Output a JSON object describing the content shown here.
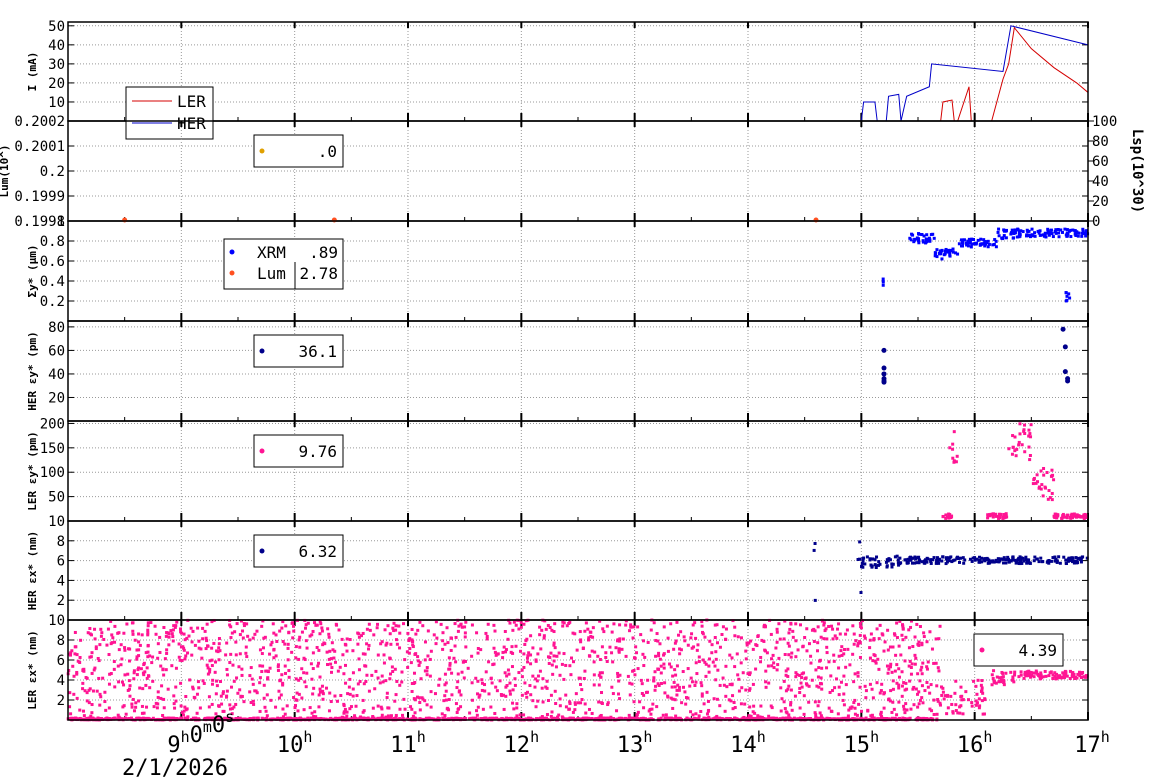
{
  "chart_data": [
    {
      "panel": "I",
      "type": "line",
      "ylabel": "I (mA)",
      "ylim": [
        0,
        52
      ],
      "yticks": [
        10,
        20,
        30,
        40,
        50
      ],
      "legend": {
        "placement": "left",
        "entries": [
          "LER",
          "HER"
        ]
      },
      "series": [
        {
          "name": "LER",
          "color": "#d40000",
          "x": [
            8.0,
            15.5,
            15.7,
            15.72,
            15.8,
            15.82,
            15.85,
            15.95,
            15.97,
            16.0,
            16.15,
            16.25,
            16.3,
            16.35,
            16.5,
            16.7,
            16.9,
            17.0
          ],
          "y": [
            0,
            0,
            0,
            10,
            11,
            0,
            0,
            18,
            0,
            0,
            0,
            22,
            30,
            49,
            38,
            28,
            20,
            15
          ]
        },
        {
          "name": "HER",
          "color": "#0000c8",
          "x": [
            8.0,
            15.0,
            15.02,
            15.12,
            15.14,
            15.22,
            15.24,
            15.33,
            15.35,
            15.4,
            15.6,
            15.62,
            16.25,
            16.32,
            17.0
          ],
          "y": [
            0,
            0,
            10,
            10,
            0,
            0,
            13,
            14,
            0,
            13,
            18,
            30,
            26,
            50,
            40
          ]
        }
      ]
    },
    {
      "panel": "Lum",
      "type": "scatter",
      "ylabel": "Lum(10^)",
      "ylim": [
        0.1998,
        0.2002
      ],
      "yticks": [
        "0.1998",
        "0.1999",
        "0.2",
        "0.2001",
        "0.2002"
      ],
      "y2label": "Lsp(10^30)",
      "y2lim": [
        0,
        100
      ],
      "y2ticks": [
        0,
        20,
        40,
        60,
        80,
        100
      ],
      "legend_value": ".0",
      "legend_color": "#e0a000"
    },
    {
      "panel": "sigma_y",
      "type": "scatter",
      "ylabel": "Σy* (μm)",
      "ylim": [
        0,
        1.0
      ],
      "yticks": [
        "0.2",
        "0.4",
        "0.6",
        "0.8",
        "1"
      ],
      "legend": [
        {
          "name": "XRM",
          "value": ".89",
          "color": "#0000ff"
        },
        {
          "name": "Lum",
          "value": "2.78",
          "color": "#ff5020"
        }
      ],
      "series": [
        {
          "name": "XRM",
          "color": "#0000ff",
          "kind": "segments",
          "segments": [
            [
              15.18,
              15.2,
              0.33,
              0.42
            ],
            [
              15.4,
              15.65,
              0.78,
              0.88
            ],
            [
              15.65,
              15.85,
              0.62,
              0.72
            ],
            [
              15.85,
              16.2,
              0.74,
              0.82
            ],
            [
              16.2,
              16.45,
              0.82,
              0.92
            ],
            [
              16.45,
              17.0,
              0.84,
              0.92
            ],
            [
              16.8,
              16.85,
              0.2,
              0.3
            ]
          ]
        },
        {
          "name": "Lum",
          "color": "#ff5020",
          "kind": "points",
          "x": [
            8.5,
            10.35,
            14.6
          ],
          "y": [
            1.01,
            1.01,
            1.01
          ]
        }
      ]
    },
    {
      "panel": "HER_eps_y",
      "type": "scatter",
      "ylabel": "HER εy* (pm)",
      "ylim": [
        0,
        85
      ],
      "yticks": [
        20,
        40,
        60,
        80
      ],
      "legend_value": "36.1",
      "legend_color": "#00008b",
      "series": [
        {
          "color": "#00008b",
          "x": [
            15.2,
            15.2,
            15.2,
            15.2,
            15.2,
            15.2,
            16.78,
            16.8,
            16.8,
            16.82,
            16.82
          ],
          "y": [
            60,
            45,
            40,
            36,
            34,
            33,
            78,
            63,
            42,
            36,
            34
          ]
        }
      ]
    },
    {
      "panel": "LER_eps_y",
      "type": "scatter",
      "ylabel": "LER εy* (pm)",
      "ylim": [
        0,
        205
      ],
      "yticks": [
        50,
        100,
        150,
        200
      ],
      "legend_value": "9.76",
      "legend_color": "#ff1493",
      "series": [
        {
          "color": "#ff1493",
          "kind": "segments",
          "segments": [
            [
              15.7,
              15.8,
              5,
              15
            ],
            [
              15.78,
              15.85,
              120,
              200
            ],
            [
              16.1,
              16.3,
              5,
              15
            ],
            [
              16.3,
              16.5,
              125,
              200
            ],
            [
              16.5,
              16.7,
              40,
              110
            ],
            [
              16.7,
              17.0,
              5,
              15
            ]
          ]
        }
      ]
    },
    {
      "panel": "HER_eps_x",
      "type": "scatter",
      "ylabel": "HER εx* (nm)",
      "ylim": [
        0,
        10
      ],
      "yticks": [
        2,
        4,
        6,
        8,
        10
      ],
      "legend_value": "6.32",
      "legend_color": "#00008b",
      "series": [
        {
          "color": "#00008b",
          "kind": "segments",
          "segments": [
            [
              14.58,
              14.6,
              1.5,
              9.5
            ],
            [
              14.97,
              15.0,
              2.0,
              9.0
            ],
            [
              15.0,
              15.18,
              5.3,
              6.5
            ],
            [
              15.2,
              15.35,
              5.3,
              6.5
            ],
            [
              15.38,
              17.0,
              5.7,
              6.4
            ]
          ]
        }
      ]
    },
    {
      "panel": "LER_eps_x",
      "type": "scatter",
      "ylabel": "LER εx* (nm)",
      "ylim": [
        0,
        10
      ],
      "yticks": [
        2,
        4,
        6,
        8,
        10
      ],
      "legend_value": "4.39",
      "legend_color": "#ff1493",
      "series": [
        {
          "color": "#ff1493",
          "kind": "noise",
          "xrange": [
            8.0,
            15.7
          ],
          "yrange": [
            0,
            10
          ]
        },
        {
          "color": "#ff1493",
          "kind": "segments",
          "segments": [
            [
              8.0,
              15.7,
              0,
              0.2
            ],
            [
              15.7,
              16.1,
              0.5,
              4.0
            ],
            [
              16.15,
              16.35,
              3.5,
              5.0
            ],
            [
              16.35,
              17.0,
              4.1,
              4.9
            ]
          ]
        }
      ]
    }
  ],
  "xaxis": {
    "range_hours": [
      8.0,
      17.0
    ],
    "ticks": [
      {
        "hour": 9,
        "main": "9",
        "sup": "h",
        "main2": "0",
        "sup2": "m",
        "main3": "0",
        "sup3": "s"
      },
      {
        "hour": 10,
        "main": "10",
        "sup": "h"
      },
      {
        "hour": 11,
        "main": "11",
        "sup": "h"
      },
      {
        "hour": 12,
        "main": "12",
        "sup": "h"
      },
      {
        "hour": 13,
        "main": "13",
        "sup": "h"
      },
      {
        "hour": 14,
        "main": "14",
        "sup": "h"
      },
      {
        "hour": 15,
        "main": "15",
        "sup": "h"
      },
      {
        "hour": 16,
        "main": "16",
        "sup": "h"
      },
      {
        "hour": 17,
        "main": "17",
        "sup": "h"
      }
    ],
    "date": "2/1/2026"
  }
}
